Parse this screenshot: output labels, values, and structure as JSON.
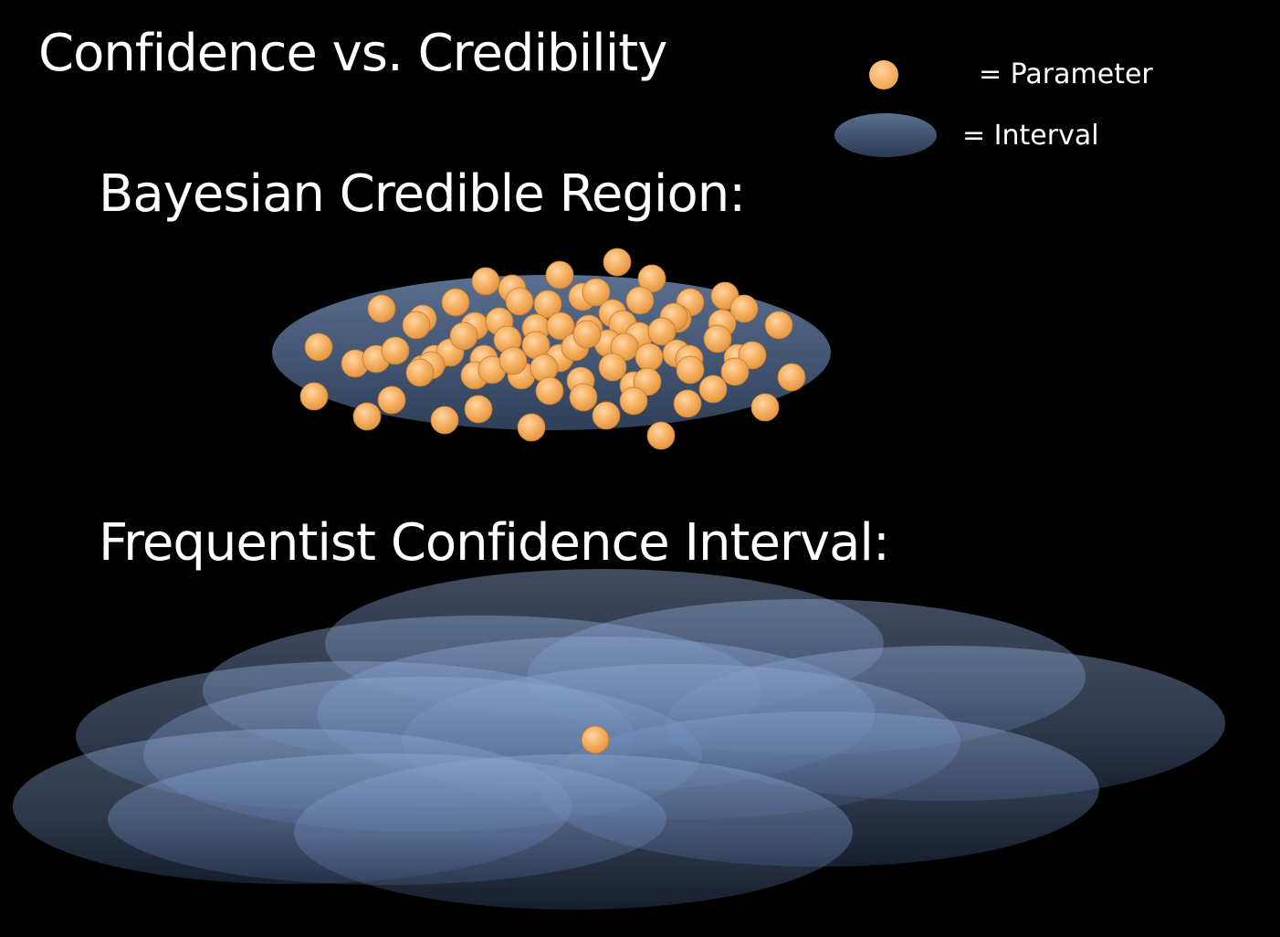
{
  "title": "Confidence vs. Credibility",
  "legend": {
    "parameter_label": "= Parameter",
    "interval_label": "= Interval"
  },
  "sections": {
    "bayesian_heading": "Bayesian Credible Region:",
    "frequentist_heading": "Frequentist Confidence Interval:"
  },
  "colors": {
    "background": "#000000",
    "parameter_orange": "#f5ab5e",
    "interval_blue": "#4a6183"
  }
}
